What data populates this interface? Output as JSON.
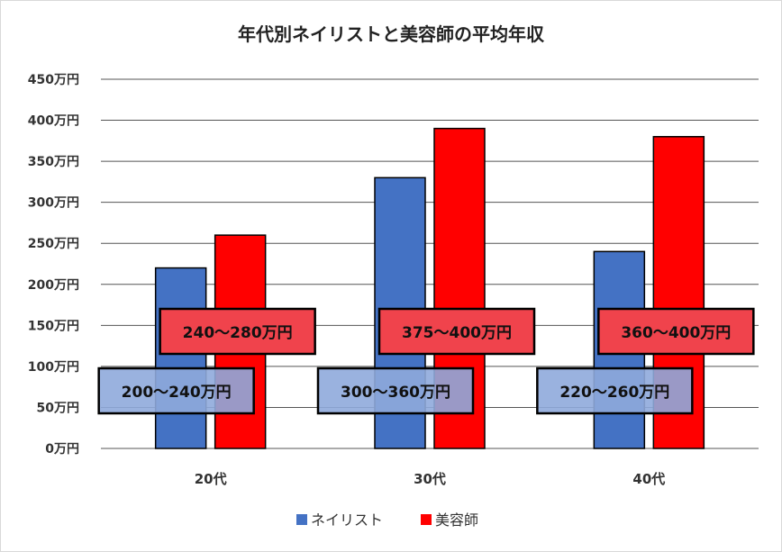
{
  "chart_data": {
    "type": "bar",
    "title": "年代別ネイリストと美容師の平均年収",
    "categories": [
      "20代",
      "30代",
      "40代"
    ],
    "series": [
      {
        "name": "ネイリスト",
        "color": "#4472c4",
        "values": [
          220,
          330,
          240
        ],
        "labels": [
          "200～240万円",
          "300～360万円",
          "220～260万円"
        ],
        "label_color": "#8faadc"
      },
      {
        "name": "美容師",
        "color": "#ff0000",
        "values": [
          260,
          390,
          380
        ],
        "labels": [
          "240～280万円",
          "375～400万円",
          "360～400万円"
        ],
        "label_color": "#f0434c"
      }
    ],
    "yticks": [
      "0万円",
      "50万円",
      "100万円",
      "150万円",
      "200万円",
      "250万円",
      "300万円",
      "350万円",
      "400万円",
      "450万円"
    ],
    "ylim": [
      0,
      450
    ],
    "grid": true,
    "legend_position": "bottom"
  }
}
